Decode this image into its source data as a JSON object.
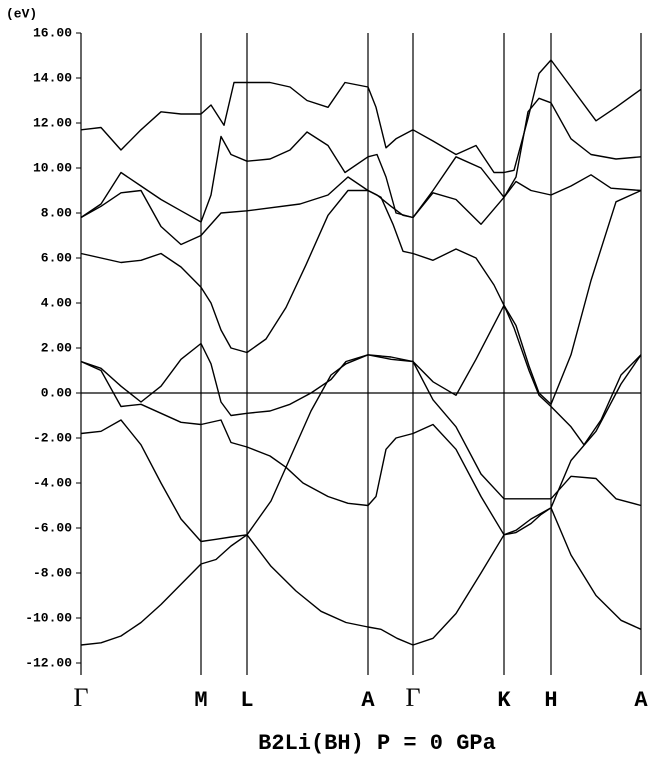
{
  "chart_data": {
    "type": "line",
    "title": "B2Li(BH) P = 0 GPa",
    "y_label": "(eV)",
    "xlim": [
      0,
      560
    ],
    "ylim": [
      -12,
      16
    ],
    "xticks": [
      {
        "value": 0,
        "label": "Γ"
      },
      {
        "value": 120,
        "label": "M"
      },
      {
        "value": 166,
        "label": "L"
      },
      {
        "value": 287,
        "label": "A"
      },
      {
        "value": 332,
        "label": "Γ"
      },
      {
        "value": 423,
        "label": "K"
      },
      {
        "value": 470,
        "label": "H"
      },
      {
        "value": 560,
        "label": "A"
      }
    ],
    "yticks": [
      {
        "value": 16,
        "label": "16.00"
      },
      {
        "value": 14,
        "label": "14.00"
      },
      {
        "value": 12,
        "label": "12.00"
      },
      {
        "value": 10,
        "label": "10.00"
      },
      {
        "value": 8,
        "label": "8.00"
      },
      {
        "value": 6,
        "label": "6.00"
      },
      {
        "value": 4,
        "label": "4.00"
      },
      {
        "value": 2,
        "label": "2.00"
      },
      {
        "value": 0,
        "label": "0.00"
      },
      {
        "value": -2,
        "label": "-2.00"
      },
      {
        "value": -4,
        "label": "-4.00"
      },
      {
        "value": -6,
        "label": "-6.00"
      },
      {
        "value": -8,
        "label": "-8.00"
      },
      {
        "value": -10,
        "label": "-10.00"
      },
      {
        "value": -12,
        "label": "-12.00"
      }
    ],
    "series": [
      {
        "color": "#000000",
        "x": [
          0,
          20,
          40,
          60,
          80,
          100,
          120,
          130,
          143,
          153,
          166,
          189,
          209,
          226,
          247,
          264,
          287,
          295,
          305,
          315,
          332,
          352,
          375,
          395,
          413,
          423,
          433,
          447,
          458,
          470,
          490,
          515,
          535,
          560
        ],
        "values": [
          11.7,
          11.8,
          10.8,
          11.7,
          12.5,
          12.4,
          12.4,
          12.8,
          11.9,
          13.8,
          13.8,
          13.8,
          13.6,
          13.0,
          12.7,
          13.8,
          13.6,
          12.7,
          10.9,
          11.3,
          11.7,
          11.2,
          10.6,
          11.0,
          9.8,
          9.8,
          9.9,
          12.2,
          14.2,
          14.8,
          13.6,
          12.1,
          12.7,
          13.5
        ]
      },
      {
        "color": "#000000",
        "x": [
          0,
          20,
          40,
          60,
          80,
          100,
          120,
          130,
          140,
          150,
          166,
          189,
          209,
          226,
          247,
          264,
          287,
          296,
          305,
          315,
          332,
          352,
          375,
          400,
          423,
          435,
          447,
          458,
          470,
          490,
          510,
          535,
          560
        ],
        "values": [
          7.8,
          8.4,
          9.8,
          9.2,
          8.6,
          8.1,
          7.6,
          8.8,
          11.4,
          10.6,
          10.3,
          10.4,
          10.8,
          11.6,
          11.0,
          9.8,
          10.5,
          10.6,
          9.6,
          8.0,
          7.8,
          9.0,
          10.5,
          10.0,
          8.7,
          9.6,
          12.5,
          13.1,
          12.9,
          11.3,
          10.6,
          10.4,
          10.5
        ]
      },
      {
        "color": "#000000",
        "x": [
          0,
          20,
          40,
          60,
          80,
          100,
          120,
          140,
          166,
          219,
          247,
          267,
          287,
          296,
          310,
          322,
          332,
          352,
          375,
          400,
          423,
          435,
          450,
          470,
          490,
          510,
          530,
          560
        ],
        "values": [
          7.8,
          8.3,
          8.9,
          9.0,
          7.4,
          6.6,
          7.0,
          8.0,
          8.1,
          8.4,
          8.8,
          9.6,
          9.0,
          8.8,
          8.3,
          7.9,
          7.8,
          8.9,
          8.6,
          7.5,
          8.7,
          9.4,
          9.0,
          8.8,
          9.2,
          9.7,
          9.1,
          9.0
        ]
      },
      {
        "color": "#000000",
        "x": [
          0,
          40,
          60,
          80,
          100,
          120,
          130,
          140,
          150,
          166,
          185,
          205,
          225,
          247,
          267,
          287,
          300,
          312,
          322,
          332,
          352,
          375,
          395,
          413,
          423,
          435,
          448,
          458,
          470,
          490,
          510,
          535,
          560
        ],
        "values": [
          6.2,
          5.8,
          5.9,
          6.2,
          5.6,
          4.7,
          4.0,
          2.8,
          2.0,
          1.8,
          2.4,
          3.8,
          5.7,
          7.9,
          9.0,
          9.0,
          8.7,
          7.5,
          6.3,
          6.2,
          5.9,
          6.4,
          6.0,
          4.8,
          3.9,
          3.0,
          1.2,
          0.0,
          -0.5,
          1.7,
          5.0,
          8.5,
          9.0
        ]
      },
      {
        "color": "#000000",
        "x": [
          0,
          20,
          40,
          60,
          80,
          100,
          120,
          140,
          150,
          166,
          189,
          205,
          222,
          247,
          267,
          287,
          295,
          305,
          315,
          332,
          352,
          375,
          400,
          423,
          435,
          450,
          460,
          470,
          490,
          515,
          540,
          560
        ],
        "values": [
          1.4,
          1.0,
          -0.6,
          -0.5,
          -0.9,
          -1.3,
          -1.4,
          -1.2,
          -2.2,
          -2.4,
          -2.8,
          -3.3,
          -4.0,
          -4.6,
          -4.9,
          -5.0,
          -4.6,
          -2.5,
          -2.0,
          -1.8,
          -1.4,
          -2.5,
          -4.6,
          -6.3,
          -6.2,
          -5.8,
          -5.4,
          -5.1,
          -3.0,
          -1.7,
          0.4,
          1.7
        ]
      },
      {
        "color": "#000000",
        "x": [
          0,
          20,
          40,
          60,
          80,
          100,
          120,
          130,
          140,
          150,
          166,
          189,
          209,
          230,
          250,
          265,
          287,
          310,
          332,
          352,
          375,
          395,
          423,
          433,
          448,
          458,
          470,
          490,
          503,
          520,
          540,
          560
        ],
        "values": [
          1.4,
          1.1,
          0.3,
          -0.4,
          0.3,
          1.5,
          2.2,
          1.3,
          -0.4,
          -1.0,
          -0.9,
          -0.8,
          -0.5,
          0.0,
          0.6,
          1.4,
          1.7,
          1.6,
          1.4,
          0.5,
          -0.1,
          1.5,
          3.9,
          2.9,
          1.0,
          -0.1,
          -0.6,
          -1.5,
          -2.3,
          -1.2,
          0.8,
          1.7
        ]
      },
      {
        "color": "#000000",
        "x": [
          0,
          20,
          40,
          60,
          80,
          100,
          120,
          135,
          150,
          166,
          190,
          210,
          230,
          250,
          265,
          287,
          310,
          332,
          352,
          375,
          400,
          423,
          450,
          470,
          490,
          515,
          535,
          560
        ],
        "values": [
          -1.8,
          -1.7,
          -1.2,
          -2.3,
          -4.0,
          -5.6,
          -6.6,
          -6.5,
          -6.4,
          -6.3,
          -4.8,
          -2.8,
          -0.8,
          0.8,
          1.3,
          1.7,
          1.5,
          1.4,
          -0.3,
          -1.5,
          -3.6,
          -4.7,
          -4.7,
          -4.7,
          -3.7,
          -3.8,
          -4.7,
          -5.0
        ]
      },
      {
        "color": "#000000",
        "x": [
          0,
          20,
          40,
          60,
          80,
          100,
          120,
          135,
          150,
          166,
          190,
          215,
          240,
          265,
          287,
          300,
          316,
          332,
          352,
          375,
          400,
          423,
          435,
          450,
          470,
          490,
          515,
          540,
          560
        ],
        "values": [
          -11.2,
          -11.1,
          -10.8,
          -10.2,
          -9.4,
          -8.5,
          -7.6,
          -7.4,
          -6.8,
          -6.3,
          -7.7,
          -8.8,
          -9.7,
          -10.2,
          -10.4,
          -10.5,
          -10.9,
          -11.2,
          -10.9,
          -9.8,
          -8.0,
          -6.3,
          -6.1,
          -5.6,
          -5.1,
          -7.2,
          -9.0,
          -10.1,
          -10.5
        ]
      }
    ]
  }
}
